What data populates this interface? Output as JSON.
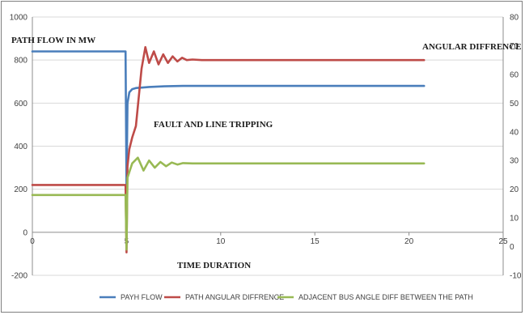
{
  "chart_data": {
    "type": "line",
    "title": "",
    "xlabel": "",
    "ylabel": "",
    "xlim": [
      0,
      25
    ],
    "xticks": [
      0,
      5,
      10,
      15,
      20,
      25
    ],
    "ylim_left": [
      -200,
      1000
    ],
    "yticks_left": [
      -200,
      0,
      200,
      400,
      600,
      800,
      1000
    ],
    "ylim_right": [
      -10,
      80
    ],
    "yticks_right": [
      -10,
      0,
      10,
      20,
      30,
      40,
      50,
      60,
      70,
      80
    ],
    "grid": "horizontal",
    "legend_placement": "bottom",
    "annotations": [
      {
        "text": "PATH FLOW IN MW"
      },
      {
        "text": "ANGULAR DIFFRENCE"
      },
      {
        "text": "FAULT AND LINE TRIPPING"
      },
      {
        "text": "TIME DURATION"
      }
    ],
    "series": [
      {
        "name": "PAYH FLOW",
        "axis": "left",
        "color": "#4a7ebb",
        "x": [
          0,
          4.95,
          5.0,
          5.05,
          5.15,
          5.3,
          5.5,
          5.8,
          6.2,
          7,
          8,
          10,
          15,
          20.8
        ],
        "y": [
          840,
          840,
          200,
          600,
          650,
          665,
          670,
          672,
          675,
          678,
          680,
          680,
          680,
          680
        ]
      },
      {
        "name": "PATH ANGULAR DIFFRENCE",
        "axis": "right",
        "color": "#be4b48",
        "x": [
          0,
          4.95,
          5.0,
          5.05,
          5.15,
          5.3,
          5.5,
          5.65,
          5.8,
          6.0,
          6.2,
          6.45,
          6.7,
          6.95,
          7.2,
          7.45,
          7.7,
          7.95,
          8.2,
          8.5,
          9,
          10,
          15,
          20.8
        ],
        "y": [
          21.5,
          21.5,
          -2,
          28,
          34,
          38,
          42,
          52,
          62,
          69.5,
          64,
          68,
          63.5,
          67,
          64,
          66.3,
          64.5,
          65.8,
          65,
          65.2,
          65,
          65,
          65,
          65
        ]
      },
      {
        "name": "ADJACENT BUS ANGLE DIFF BETWEEN THE PATH",
        "axis": "right",
        "color": "#98b954",
        "x": [
          0,
          4.95,
          5.0,
          5.05,
          5.3,
          5.6,
          5.9,
          6.2,
          6.5,
          6.8,
          7.1,
          7.4,
          7.7,
          8.0,
          8.5,
          10,
          15,
          20.8
        ],
        "y": [
          18,
          18,
          -1,
          24,
          29,
          31,
          26.5,
          30,
          27.5,
          29.5,
          28,
          29.3,
          28.6,
          29.1,
          29,
          29,
          29,
          29
        ]
      }
    ]
  }
}
